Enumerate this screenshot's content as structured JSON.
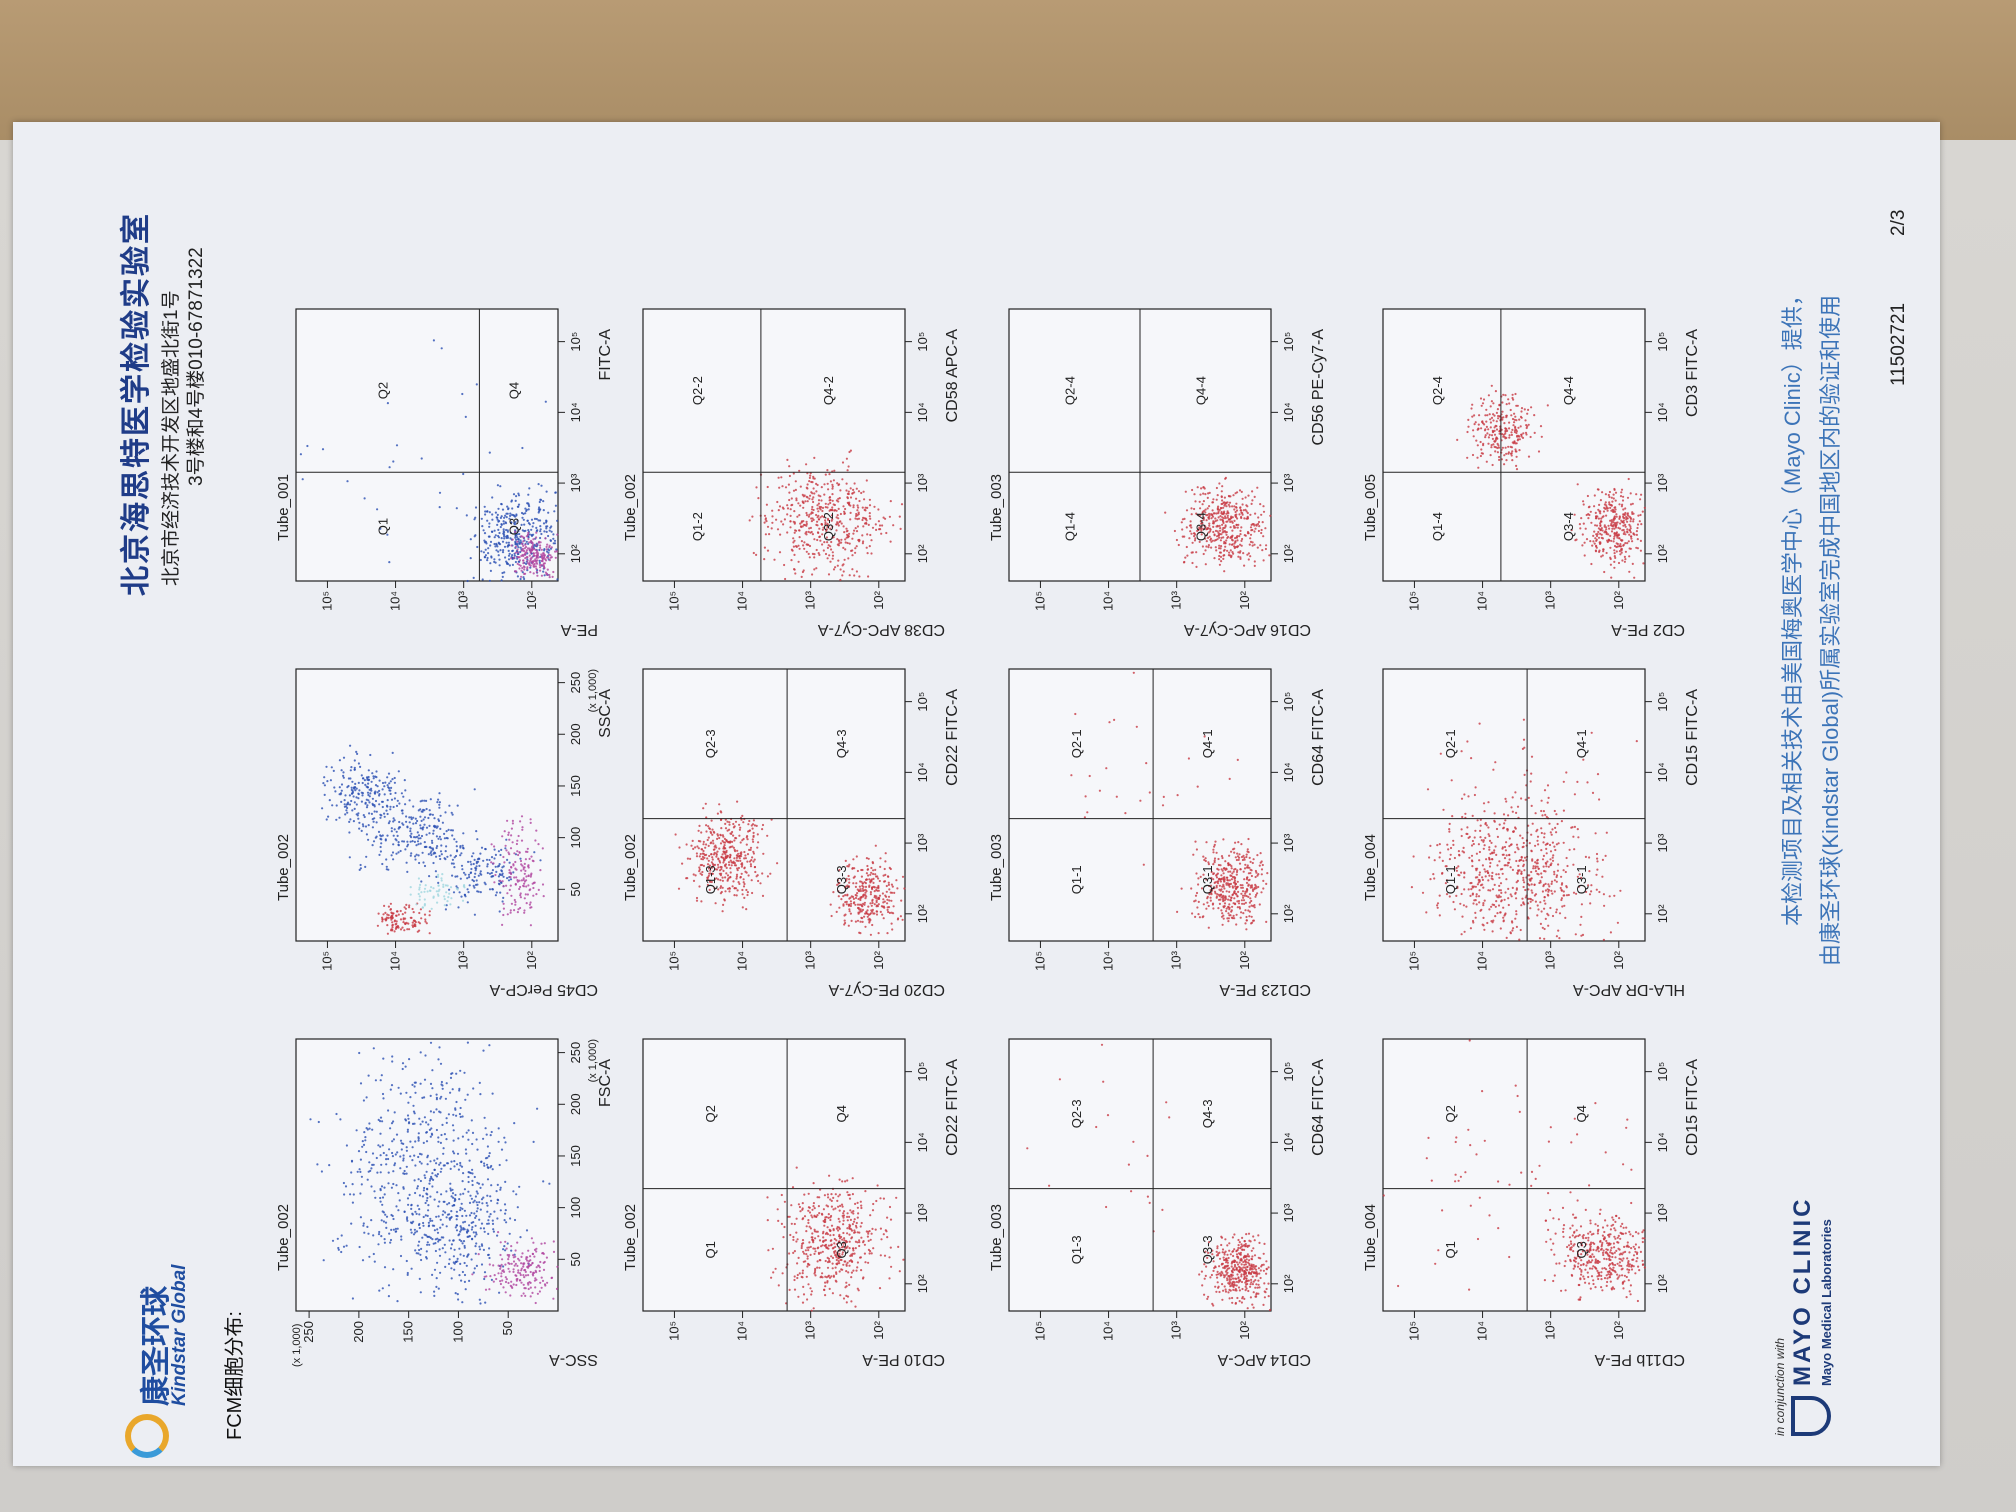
{
  "header": {
    "title": "北京海思特医学检验实验室",
    "address_line1": "北京市经济技术开发区地盛北街1号",
    "address_line2": "3号楼和4号楼010-67871322"
  },
  "logo": {
    "name_cn": "康圣环球",
    "name_en": "Kindstar Global"
  },
  "section_label": "FCM细胞分布:",
  "plots": [
    {
      "tube": "Tube_002",
      "x_label": "FSC-A",
      "y_label": "SSC-A",
      "x_ticks": [
        "50",
        "100",
        "150",
        "200",
        "250"
      ],
      "x_unit": "(x 1,000)",
      "y_ticks": [
        "50",
        "100",
        "150",
        "200",
        "250"
      ],
      "y_unit": "(x 1,000)",
      "quadrants": []
    },
    {
      "tube": "Tube_002",
      "x_label": "SSC-A",
      "y_label": "CD45 PerCP-A",
      "x_ticks": [
        "50",
        "100",
        "150",
        "200",
        "250"
      ],
      "x_unit": "(x 1,000)",
      "y_ticks": [
        "10²",
        "10³",
        "10⁴",
        "10⁵"
      ],
      "quadrants": []
    },
    {
      "tube": "Tube_001",
      "x_label": "FITC-A",
      "y_label": "PE-A",
      "x_ticks": [
        "10²",
        "10³",
        "10⁴",
        "10⁵"
      ],
      "y_ticks": [
        "10²",
        "10³",
        "10⁴",
        "10⁵"
      ],
      "quadrants": [
        "Q1",
        "Q2",
        "Q3",
        "Q4"
      ]
    },
    {
      "tube": "Tube_002",
      "x_label": "CD22 FITC-A",
      "y_label": "CD10 PE-A",
      "x_ticks": [
        "10²",
        "10³",
        "10⁴",
        "10⁵"
      ],
      "y_ticks": [
        "10²",
        "10³",
        "10⁴",
        "10⁵"
      ],
      "quadrants": [
        "Q1",
        "Q2",
        "Q3",
        "Q4"
      ]
    },
    {
      "tube": "Tube_002",
      "x_label": "CD22 FITC-A",
      "y_label": "CD20 PE-Cy7-A",
      "x_ticks": [
        "10²",
        "10³",
        "10⁴",
        "10⁵"
      ],
      "y_ticks": [
        "10²",
        "10³",
        "10⁴",
        "10⁵"
      ],
      "quadrants": [
        "Q1-3",
        "Q2-3",
        "Q3-3",
        "Q4-3"
      ]
    },
    {
      "tube": "Tube_002",
      "x_label": "CD58 APC-A",
      "y_label": "CD38 APC-Cy7-A",
      "x_ticks": [
        "10²",
        "10³",
        "10⁴",
        "10⁵"
      ],
      "y_ticks": [
        "10²",
        "10³",
        "10⁴",
        "10⁵"
      ],
      "quadrants": [
        "Q1-2",
        "Q2-2",
        "Q3-2",
        "Q4-2"
      ]
    },
    {
      "tube": "Tube_003",
      "x_label": "CD64 FITC-A",
      "y_label": "CD14 APC-A",
      "x_ticks": [
        "10²",
        "10³",
        "10⁴",
        "10⁵"
      ],
      "y_ticks": [
        "10²",
        "10³",
        "10⁴",
        "10⁵"
      ],
      "quadrants": [
        "Q1-3",
        "Q2-3",
        "Q3-3",
        "Q4-3"
      ]
    },
    {
      "tube": "Tube_003",
      "x_label": "CD64 FITC-A",
      "y_label": "CD123 PE-A",
      "x_ticks": [
        "10²",
        "10³",
        "10⁴",
        "10⁵"
      ],
      "y_ticks": [
        "10²",
        "10³",
        "10⁴",
        "10⁵"
      ],
      "quadrants": [
        "Q1-1",
        "Q2-1",
        "Q3-1",
        "Q4-1"
      ]
    },
    {
      "tube": "Tube_003",
      "x_label": "CD56 PE-Cy7-A",
      "y_label": "CD16 APC-Cy7-A",
      "x_ticks": [
        "10²",
        "10³",
        "10⁴",
        "10⁵"
      ],
      "y_ticks": [
        "10²",
        "10³",
        "10⁴",
        "10⁵"
      ],
      "quadrants": [
        "Q1-4",
        "Q2-4",
        "Q3-4",
        "Q4-4"
      ]
    },
    {
      "tube": "Tube_004",
      "x_label": "CD15 FITC-A",
      "y_label": "CD11b PE-A",
      "x_ticks": [
        "10²",
        "10³",
        "10⁴",
        "10⁵"
      ],
      "y_ticks": [
        "10²",
        "10³",
        "10⁴",
        "10⁵"
      ],
      "quadrants": [
        "Q1",
        "Q2",
        "Q3",
        "Q4"
      ]
    },
    {
      "tube": "Tube_004",
      "x_label": "CD15 FITC-A",
      "y_label": "HLA-DR APC-A",
      "x_ticks": [
        "10²",
        "10³",
        "10⁴",
        "10⁵"
      ],
      "y_ticks": [
        "10²",
        "10³",
        "10⁴",
        "10⁵"
      ],
      "quadrants": [
        "Q1-1",
        "Q2-1",
        "Q3-1",
        "Q4-1"
      ]
    },
    {
      "tube": "Tube_005",
      "x_label": "CD3 FITC-A",
      "y_label": "CD2 PE-A",
      "x_ticks": [
        "10²",
        "10³",
        "10⁴",
        "10⁵"
      ],
      "y_ticks": [
        "10²",
        "10³",
        "10⁴",
        "10⁵"
      ],
      "quadrants": [
        "Q1-4",
        "Q2-4",
        "Q3-4",
        "Q4-4"
      ]
    }
  ],
  "footer": {
    "line1": "本检测项目及相关技术由美国梅奥医学中心（Mayo Clinic）提供，",
    "line2": "由康圣环球(Kindstar Global)所属实验室完成中国地区内的验证和使用",
    "doc_number": "11502721",
    "page": "2/3",
    "partner_note": "in conjunction with",
    "partner_name": "MAYO CLINIC",
    "partner_sub": "Mayo Medical Laboratories"
  }
}
